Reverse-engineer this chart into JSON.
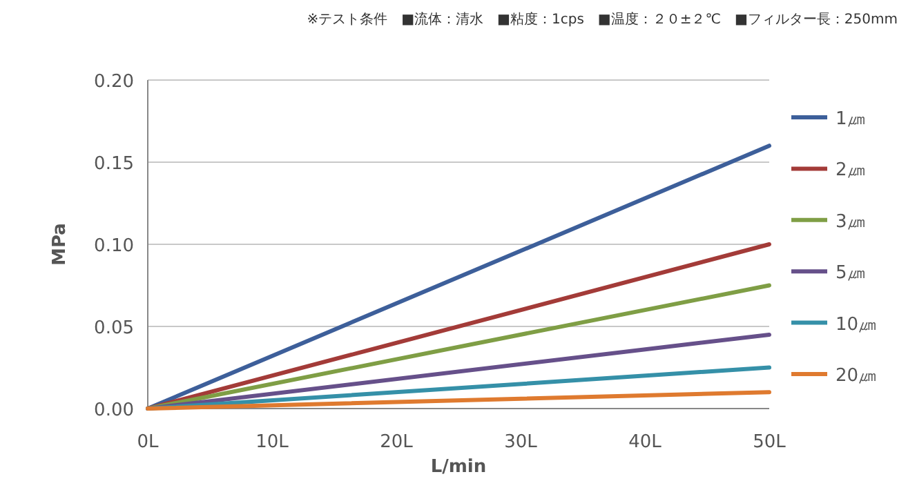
{
  "chart_data": {
    "type": "line",
    "xlabel": "L/min",
    "ylabel": "MPa",
    "annotations": [
      "※テスト条件　■流体：清水　■粘度：1cps　■温度：２０±２℃　■フィルター長：250mm"
    ],
    "x": [
      0,
      50
    ],
    "series": [
      {
        "name": "1㎛",
        "color": "#3d5f9a",
        "values": [
          0,
          0.16
        ]
      },
      {
        "name": "2㎛",
        "color": "#a33b38",
        "values": [
          0,
          0.1
        ]
      },
      {
        "name": "3㎛",
        "color": "#7f9e45",
        "values": [
          0,
          0.075
        ]
      },
      {
        "name": "5㎛",
        "color": "#66508a",
        "values": [
          0,
          0.045
        ]
      },
      {
        "name": "10㎛",
        "color": "#3590a8",
        "values": [
          0,
          0.025
        ]
      },
      {
        "name": "20㎛",
        "color": "#df7a2f",
        "values": [
          0,
          0.01
        ]
      }
    ],
    "xlim": [
      0,
      50
    ],
    "ylim": [
      0,
      0.2
    ],
    "xticks": [
      {
        "value": 0,
        "label": "0L"
      },
      {
        "value": 10,
        "label": "10L"
      },
      {
        "value": 20,
        "label": "20L"
      },
      {
        "value": 30,
        "label": "30L"
      },
      {
        "value": 40,
        "label": "40L"
      },
      {
        "value": 50,
        "label": "50L"
      }
    ],
    "yticks": [
      {
        "value": 0,
        "label": "0.00"
      },
      {
        "value": 0.05,
        "label": "0.05"
      },
      {
        "value": 0.1,
        "label": "0.10"
      },
      {
        "value": 0.15,
        "label": "0.15"
      },
      {
        "value": 0.2,
        "label": "0.20"
      }
    ],
    "grid": "y",
    "legend": "right",
    "marker": "none",
    "line_style": "solid"
  }
}
